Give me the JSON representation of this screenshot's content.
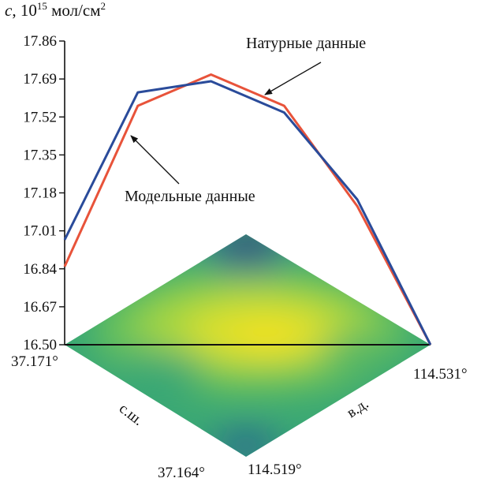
{
  "chart_data": {
    "type": "line",
    "ylabel_var": "c",
    "ylabel_base": ", 10",
    "ylabel_exp": "15",
    "ylabel_unit": " мол/см",
    "ylabel_unit_exp": "2",
    "yticks": [
      "17.86",
      "17.69",
      "17.52",
      "17.35",
      "17.18",
      "17.01",
      "16.84",
      "16.67",
      "16.50"
    ],
    "ylim": [
      16.5,
      17.86
    ],
    "x": [
      0,
      1,
      2,
      3,
      4,
      5
    ],
    "series": [
      {
        "name": "Натурные данные",
        "color": "#e8533a",
        "values": [
          16.85,
          17.57,
          17.71,
          17.57,
          17.12,
          16.5
        ]
      },
      {
        "name": "Модельные данные",
        "color": "#2a4b9a",
        "values": [
          16.97,
          17.63,
          17.68,
          17.54,
          17.15,
          16.5
        ]
      }
    ],
    "annotations": {
      "observed": "Натурные данные",
      "model": "Модельные данные"
    },
    "map": {
      "corner_left": "37.171°",
      "corner_right": "114.531°",
      "corner_bottom_lat": "37.164°",
      "corner_bottom_lon": "114.519°",
      "axis_lat": "с.ш.",
      "axis_lon": "в.д.",
      "colormap": "viridis"
    }
  }
}
